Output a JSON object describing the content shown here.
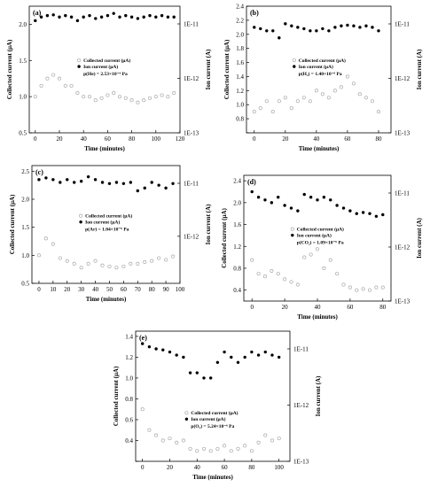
{
  "chart_data": [
    {
      "type": "scatter",
      "panel_label": "(a)",
      "xlabel": "Time (minutes)",
      "ylabel": "Collected current (μA)",
      "y2label": "Ion current (A)",
      "xlim": [
        -5,
        120
      ],
      "ylim": [
        0.5,
        2.25
      ],
      "xticks": [
        0,
        20,
        40,
        60,
        80,
        100,
        120
      ],
      "yticks": [
        0.5,
        1.0,
        1.5,
        2.0
      ],
      "yticklabels": [
        "0.5",
        "1.0",
        "1.5",
        "2.0"
      ],
      "y2ticks": [
        "1E-11",
        "1E-12",
        "1E-13"
      ],
      "legend": [
        "Collected current (μA)",
        "Ion current (μA)"
      ],
      "annotation": "p(He) = 2.53×10⁻⁶ Pa",
      "series": [
        {
          "name": "Collected current (μA)",
          "marker": "open",
          "color": "#aaaaaa",
          "x": [
            0,
            5,
            10,
            15,
            20,
            25,
            30,
            35,
            40,
            45,
            50,
            55,
            60,
            65,
            70,
            75,
            80,
            85,
            90,
            95,
            100,
            105,
            110,
            115
          ],
          "y": [
            1.0,
            1.15,
            1.25,
            1.3,
            1.25,
            1.15,
            1.15,
            1.05,
            1.0,
            1.0,
            0.95,
            0.98,
            1.02,
            1.05,
            1.0,
            0.98,
            0.95,
            0.92,
            0.95,
            0.98,
            1.0,
            1.02,
            1.0,
            1.05
          ]
        },
        {
          "name": "Ion current (μA)",
          "marker": "filled",
          "color": "#000000",
          "x": [
            0,
            5,
            10,
            15,
            20,
            25,
            30,
            35,
            40,
            45,
            50,
            55,
            60,
            65,
            70,
            75,
            80,
            85,
            90,
            95,
            100,
            105,
            110,
            115
          ],
          "y": [
            2.05,
            2.1,
            2.12,
            2.13,
            2.1,
            2.12,
            2.1,
            2.05,
            2.1,
            2.12,
            2.08,
            2.1,
            2.12,
            2.15,
            2.1,
            2.12,
            2.1,
            2.08,
            2.1,
            2.12,
            2.1,
            2.12,
            2.1,
            2.1
          ]
        }
      ]
    },
    {
      "type": "scatter",
      "panel_label": "(b)",
      "xlabel": "Time (minutes)",
      "ylabel": "Collected current (μA)",
      "y2label": "Ion current (A)",
      "xlim": [
        -5,
        88
      ],
      "ylim": [
        0.6,
        2.4
      ],
      "xticks": [
        0,
        20,
        40,
        60,
        80
      ],
      "yticks": [
        0.6,
        0.8,
        1.0,
        1.2,
        1.4,
        1.6,
        1.8,
        2.0,
        2.2,
        2.4
      ],
      "yticklabels": [
        "",
        "0.8",
        "1.0",
        "1.2",
        "1.4",
        "1.6",
        "1.8",
        "2.0",
        "2.2",
        "2.4"
      ],
      "y2ticks": [
        "1E-11",
        "1E-12",
        "1E-13"
      ],
      "legend": [
        "Collected current (μA)",
        "Ion current (μA)"
      ],
      "annotation": "p(H₂) = 1.40×10⁻⁶ Pa",
      "series": [
        {
          "name": "Collected current (μA)",
          "marker": "open",
          "color": "#aaaaaa",
          "x": [
            0,
            4,
            8,
            12,
            16,
            20,
            24,
            28,
            32,
            36,
            40,
            44,
            48,
            52,
            56,
            60,
            64,
            68,
            72,
            76,
            80
          ],
          "y": [
            0.9,
            0.95,
            1.05,
            0.9,
            1.05,
            1.1,
            0.95,
            1.05,
            1.1,
            1.05,
            1.2,
            1.15,
            1.1,
            1.2,
            1.25,
            1.4,
            1.3,
            1.15,
            1.1,
            1.05,
            0.9
          ]
        },
        {
          "name": "Ion current (μA)",
          "marker": "filled",
          "color": "#000000",
          "x": [
            0,
            4,
            8,
            12,
            16,
            20,
            24,
            28,
            32,
            36,
            40,
            44,
            48,
            52,
            56,
            60,
            64,
            68,
            72,
            76,
            80
          ],
          "y": [
            2.1,
            2.08,
            2.05,
            2.05,
            1.95,
            2.15,
            2.12,
            2.1,
            2.08,
            2.05,
            2.05,
            2.08,
            2.05,
            2.1,
            2.12,
            2.13,
            2.12,
            2.1,
            2.12,
            2.1,
            2.05
          ]
        }
      ]
    },
    {
      "type": "scatter",
      "panel_label": "(c)",
      "xlabel": "Time (minutes)",
      "ylabel": "Collected current (μA)",
      "y2label": "Ion current (A)",
      "xlim": [
        -5,
        100
      ],
      "ylim": [
        0.5,
        2.6
      ],
      "xticks": [
        0,
        10,
        20,
        30,
        40,
        50,
        60,
        70,
        80,
        90,
        100
      ],
      "yticks": [
        0.5,
        1.0,
        1.5,
        2.0,
        2.5
      ],
      "yticklabels": [
        "0.5",
        "1.0",
        "1.5",
        "2.0",
        "2.5"
      ],
      "y2ticks": [
        "1E-11",
        "1E-12"
      ],
      "legend": [
        "Collected current (μA)",
        "Ion current (μA)"
      ],
      "annotation": "p(Ar) = 1.04×10⁻⁶ Pa",
      "series": [
        {
          "name": "Collected current (μA)",
          "marker": "open",
          "color": "#aaaaaa",
          "x": [
            0,
            5,
            10,
            15,
            20,
            25,
            30,
            35,
            40,
            45,
            50,
            55,
            60,
            65,
            70,
            75,
            80,
            85,
            90,
            95
          ],
          "y": [
            1.0,
            1.3,
            1.2,
            0.95,
            0.9,
            0.85,
            0.78,
            0.85,
            0.9,
            0.82,
            0.8,
            0.78,
            0.8,
            0.85,
            0.85,
            0.88,
            0.9,
            0.95,
            0.92,
            0.98
          ]
        },
        {
          "name": "Ion current (μA)",
          "marker": "filled",
          "color": "#000000",
          "x": [
            0,
            5,
            10,
            15,
            20,
            25,
            30,
            35,
            40,
            45,
            50,
            55,
            60,
            65,
            70,
            75,
            80,
            85,
            90,
            95
          ],
          "y": [
            2.35,
            2.38,
            2.35,
            2.3,
            2.35,
            2.3,
            2.32,
            2.4,
            2.35,
            2.3,
            2.28,
            2.3,
            2.28,
            2.3,
            2.15,
            2.2,
            2.3,
            2.25,
            2.2,
            2.28
          ]
        }
      ]
    },
    {
      "type": "scatter",
      "panel_label": "(d)",
      "xlabel": "Time (minutes)",
      "ylabel": "Collected current (μA)",
      "y2label": "Ion current (A)",
      "xlim": [
        -5,
        85
      ],
      "ylim": [
        0.2,
        2.5
      ],
      "xticks": [
        0,
        20,
        40,
        60,
        80
      ],
      "yticks": [
        0.4,
        0.8,
        1.2,
        1.6,
        2.0,
        2.4
      ],
      "yticklabels": [
        "0.4",
        "0.8",
        "1.2",
        "1.6",
        "2.0",
        "2.4"
      ],
      "y2ticks": [
        "1E-11",
        "1E-12",
        "1E-13"
      ],
      "legend": [
        "Collected current (μA)",
        "Ion current (μA)"
      ],
      "annotation": "p(CO₂) = 1.09×10⁻⁶ Pa",
      "series": [
        {
          "name": "Collected current (μA)",
          "marker": "open",
          "color": "#aaaaaa",
          "x": [
            0,
            4,
            8,
            12,
            16,
            20,
            24,
            28,
            32,
            36,
            40,
            44,
            48,
            52,
            56,
            60,
            64,
            68,
            72,
            76,
            80
          ],
          "y": [
            0.95,
            0.7,
            0.65,
            0.75,
            0.7,
            0.6,
            0.55,
            0.5,
            1.0,
            1.05,
            1.15,
            0.8,
            0.95,
            0.7,
            0.5,
            0.45,
            0.4,
            0.42,
            0.4,
            0.45,
            0.45
          ]
        },
        {
          "name": "Ion current (μA)",
          "marker": "filled",
          "color": "#000000",
          "x": [
            0,
            4,
            8,
            12,
            16,
            20,
            24,
            28,
            32,
            36,
            40,
            44,
            48,
            52,
            56,
            60,
            64,
            68,
            72,
            76,
            80
          ],
          "y": [
            2.2,
            2.1,
            2.05,
            2.0,
            2.1,
            1.95,
            1.9,
            1.85,
            2.15,
            2.1,
            2.05,
            2.1,
            2.05,
            1.95,
            1.9,
            1.85,
            1.8,
            1.82,
            1.8,
            1.75,
            1.78
          ]
        }
      ]
    },
    {
      "type": "scatter",
      "panel_label": "(e)",
      "xlabel": "Time (minutes)",
      "ylabel": "Collected current (μA)",
      "y2label": "Ion current (A)",
      "xlim": [
        -5,
        108
      ],
      "ylim": [
        0.2,
        1.45
      ],
      "xticks": [
        0,
        20,
        40,
        60,
        80,
        100
      ],
      "yticks": [
        0.2,
        0.4,
        0.6,
        0.8,
        1.0,
        1.2,
        1.4
      ],
      "yticklabels": [
        "",
        "0.4",
        "0.6",
        "0.8",
        "1.0",
        "1.2",
        "1.4"
      ],
      "y2ticks": [
        "1E-11",
        "1E-12",
        "1E-13"
      ],
      "legend": [
        "Collected current (μA)",
        "Ion current (μA)"
      ],
      "annotation": "p(O₂) = 5.24×10⁻⁶ Pa",
      "series": [
        {
          "name": "Collected current (μA)",
          "marker": "open",
          "color": "#aaaaaa",
          "x": [
            0,
            5,
            10,
            15,
            20,
            25,
            30,
            35,
            40,
            45,
            50,
            55,
            60,
            65,
            70,
            75,
            80,
            85,
            90,
            95,
            100
          ],
          "y": [
            0.7,
            0.5,
            0.45,
            0.4,
            0.42,
            0.38,
            0.4,
            0.32,
            0.3,
            0.32,
            0.3,
            0.32,
            0.35,
            0.3,
            0.32,
            0.35,
            0.3,
            0.38,
            0.45,
            0.4,
            0.42
          ]
        },
        {
          "name": "Ion current (μA)",
          "marker": "filled",
          "color": "#000000",
          "x": [
            0,
            5,
            10,
            15,
            20,
            25,
            30,
            35,
            40,
            45,
            50,
            55,
            60,
            65,
            70,
            75,
            80,
            85,
            90,
            95,
            100
          ],
          "y": [
            1.33,
            1.3,
            1.28,
            1.27,
            1.25,
            1.22,
            1.2,
            1.05,
            1.05,
            1.0,
            1.0,
            1.15,
            1.25,
            1.2,
            1.15,
            1.2,
            1.25,
            1.22,
            1.25,
            1.22,
            1.2
          ]
        }
      ]
    }
  ]
}
